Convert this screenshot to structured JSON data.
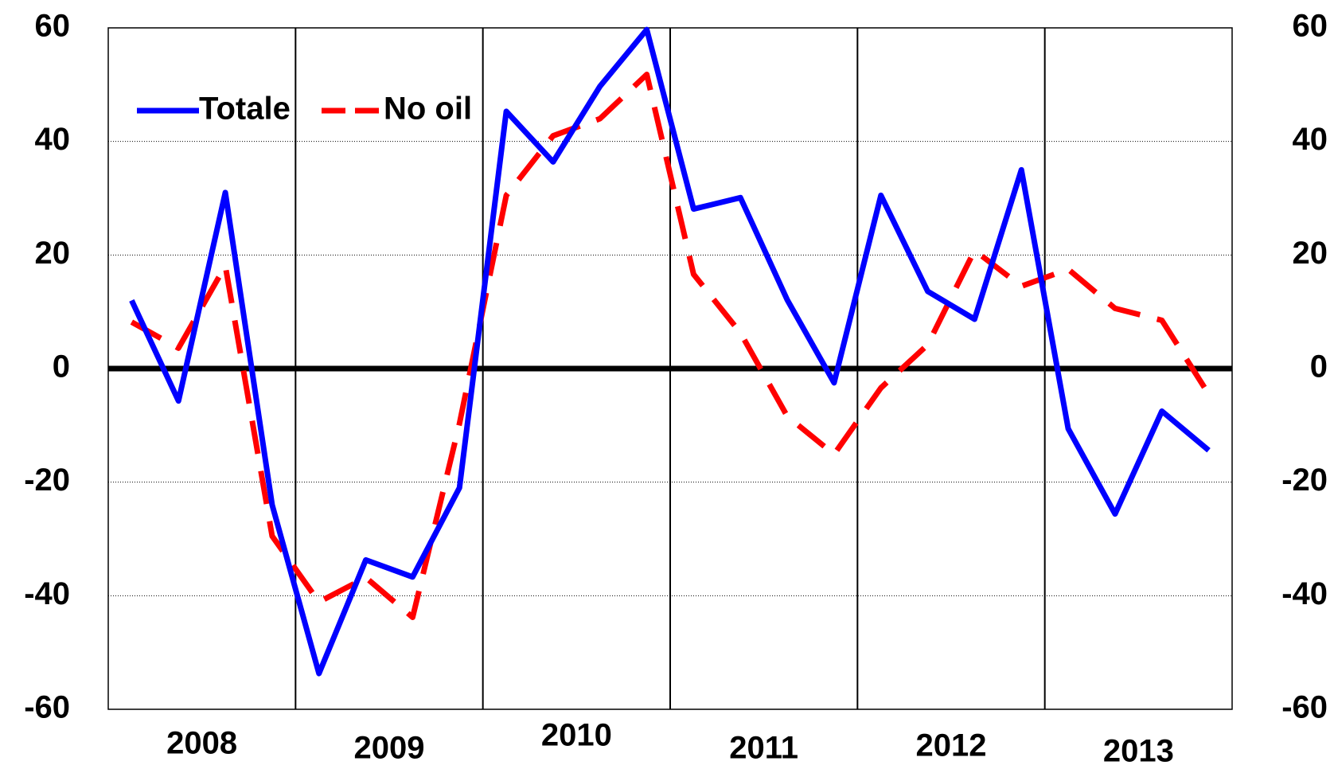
{
  "chart_data": {
    "type": "line",
    "year_groups": [
      "2008",
      "2009",
      "2010",
      "2011",
      "2012",
      "2013"
    ],
    "series": [
      {
        "name": "Totale",
        "color": "#0000ff",
        "dash": "solid",
        "values": [
          12,
          -5.7,
          31,
          -24,
          -53.7,
          -33.7,
          -36.7,
          -21,
          45.3,
          36.4,
          49.7,
          59.7,
          28.1,
          30.1,
          12.1,
          -2.5,
          30.5,
          13.6,
          8.7,
          35,
          -10.6,
          -25.6,
          -7.5,
          -14.4
        ]
      },
      {
        "name": "No oil",
        "color": "#ff0000",
        "dash": "dashed",
        "values": [
          8.2,
          3.6,
          18.1,
          -29.5,
          -41.1,
          -36.8,
          -43.8,
          -9.7,
          30.5,
          41,
          44,
          51.8,
          16.6,
          6.3,
          -8.4,
          -15.1,
          -3.4,
          4.2,
          20.8,
          14.5,
          17.5,
          10.6,
          8.5,
          -4.5
        ]
      }
    ],
    "ylim": [
      -60,
      60
    ],
    "yticks": [
      -60,
      -40,
      -20,
      0,
      20,
      40,
      60
    ],
    "y2lim": [
      -60,
      60
    ],
    "y2ticks": [
      -60,
      -40,
      -20,
      0,
      20,
      40,
      60
    ],
    "grid": true,
    "legend": "top-left"
  }
}
